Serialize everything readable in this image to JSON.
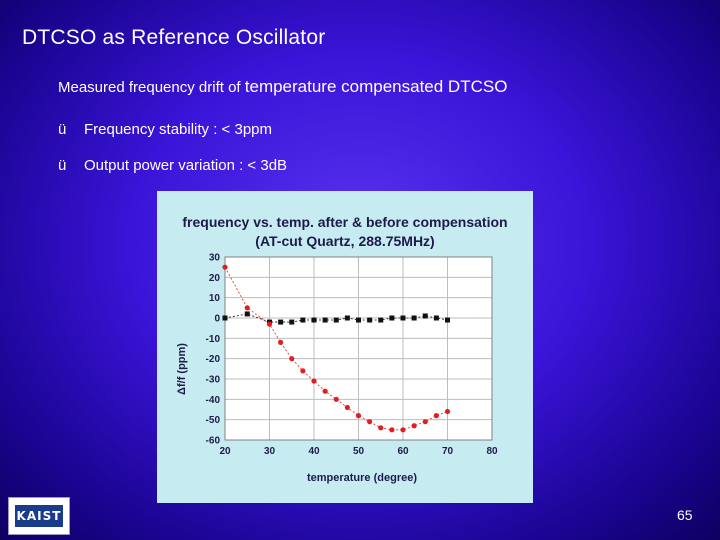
{
  "slide": {
    "title": "DTCSO as Reference Oscillator",
    "subtitle_part1": "Measured frequency drift of ",
    "subtitle_part2": "temperature compensated DTCSO",
    "bullets": [
      {
        "check": "ü",
        "text": "Frequency stability : < 3ppm"
      },
      {
        "check": "ü",
        "text": "Output power variation : < 3dB"
      }
    ],
    "logo_text": "KAIST",
    "page_number": "65"
  },
  "chart_data": {
    "type": "line",
    "title_line1": "frequency vs. temp. after & before compensation",
    "title_line2": "(AT-cut Quartz, 288.75MHz)",
    "xlabel": "temperature (degree)",
    "ylabel": "Δf/f (ppm)",
    "xlim": [
      20,
      80
    ],
    "ylim": [
      -60,
      30
    ],
    "xticks": [
      20,
      30,
      40,
      50,
      60,
      70,
      80
    ],
    "yticks": [
      30,
      20,
      10,
      0,
      -10,
      -20,
      -30,
      -40,
      -50,
      -60
    ],
    "grid": true,
    "colors": {
      "background": "#c6ecf1",
      "plot_area": "#ffffff",
      "grid": "#bdbdbd",
      "after": "#111111",
      "before": "#e02020"
    },
    "series": [
      {
        "name": "after compensation",
        "marker": "square",
        "x": [
          20,
          25,
          30,
          32.5,
          35,
          37.5,
          40,
          42.5,
          45,
          47.5,
          50,
          52.5,
          55,
          57.5,
          60,
          62.5,
          65,
          67.5,
          70
        ],
        "y": [
          0,
          2,
          -2,
          -2,
          -2,
          -1,
          -1,
          -1,
          -1,
          0,
          -1,
          -1,
          -1,
          0,
          0,
          0,
          1,
          0,
          -1
        ]
      },
      {
        "name": "before compensation",
        "marker": "circle",
        "x": [
          20,
          25,
          30,
          32.5,
          35,
          37.5,
          40,
          42.5,
          45,
          47.5,
          50,
          52.5,
          55,
          57.5,
          60,
          62.5,
          65,
          67.5,
          70
        ],
        "y": [
          25,
          5,
          -3,
          -12,
          -20,
          -26,
          -31,
          -36,
          -40,
          -44,
          -48,
          -51,
          -54,
          -55,
          -55,
          -53,
          -51,
          -48,
          -46
        ]
      }
    ]
  }
}
